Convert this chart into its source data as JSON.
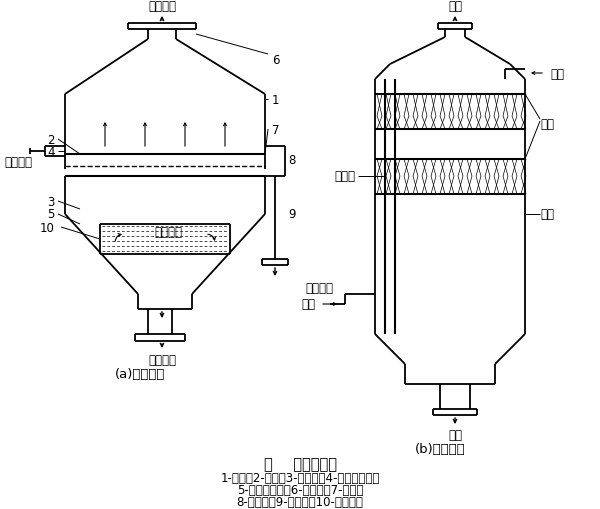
{
  "title": "图    泡沫除尘器",
  "caption_line1": "1-塔体；2-筛板；3-锥形斗；4-液体接受室；",
  "caption_line2": "5-气体分布器；6-排气管；7-挡板；",
  "caption_line3": "8-溢流室；9-溢流管；10-排泥浆管",
  "label_a": "(a)单层筛板",
  "label_b": "(b)多层筛板",
  "bg_color": "#ffffff",
  "line_color": "#000000",
  "font_size": 8.5
}
